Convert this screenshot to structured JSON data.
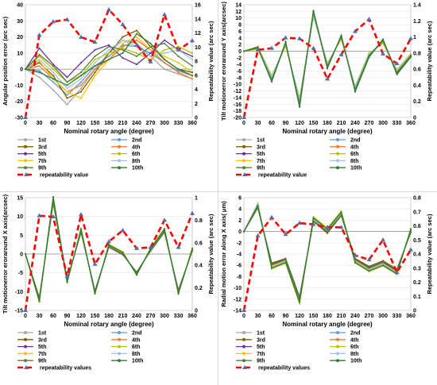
{
  "colors": {
    "runs": [
      "#a6a6a6",
      "#5b9bd5",
      "#7f6000",
      "#ed7d31",
      "#7030a0",
      "#bfbf00",
      "#ffc000",
      "#9dc3e6",
      "#548235",
      "#2e7d32"
    ],
    "repeatability": "#ff0000",
    "marker": "#4f6fb0"
  },
  "chart_data": [
    {
      "type": "line",
      "xlabel": "Nominal rotary angle (degree)",
      "ylabel": "Angular position error (arc sec)",
      "y2label": "Repeatability value (arc sec)",
      "x": [
        0,
        30,
        60,
        90,
        120,
        150,
        180,
        210,
        240,
        270,
        300,
        330,
        360
      ],
      "xticks": [
        0,
        30,
        60,
        90,
        120,
        150,
        180,
        210,
        240,
        270,
        300,
        330,
        360
      ],
      "ylim": [
        -30,
        40
      ],
      "yticks": [
        -30,
        -20,
        -10,
        0,
        10,
        20,
        30,
        40
      ],
      "y2lim": [
        0,
        16
      ],
      "y2ticks": [
        0,
        2,
        4,
        6,
        8,
        10,
        12,
        14,
        16
      ],
      "series": [
        {
          "name": "1st",
          "values": [
            0,
            -5,
            -13,
            -22,
            -12,
            0,
            10,
            18,
            16,
            8,
            0,
            -3,
            -6
          ]
        },
        {
          "name": "2nd",
          "values": [
            0,
            -1,
            -8,
            -16,
            -8,
            2,
            8,
            15,
            14,
            10,
            4,
            -1,
            -4
          ]
        },
        {
          "name": "3rd",
          "values": [
            0,
            4,
            -4,
            -18,
            -14,
            -2,
            10,
            20,
            24,
            14,
            6,
            0,
            -4
          ]
        },
        {
          "name": "4th",
          "values": [
            0,
            2,
            -6,
            -14,
            -10,
            0,
            6,
            14,
            18,
            12,
            4,
            -2,
            -6
          ]
        },
        {
          "name": "5th",
          "values": [
            0,
            13,
            3,
            -5,
            4,
            12,
            15,
            7,
            3,
            10,
            18,
            12,
            8
          ]
        },
        {
          "name": "6th",
          "values": [
            0,
            8,
            0,
            -8,
            -4,
            6,
            10,
            13,
            10,
            6,
            12,
            14,
            10
          ]
        },
        {
          "name": "7th",
          "values": [
            0,
            5,
            -6,
            -14,
            -18,
            -4,
            6,
            16,
            20,
            12,
            8,
            4,
            -2
          ]
        },
        {
          "name": "8th",
          "values": [
            0,
            6,
            -2,
            -12,
            -6,
            4,
            12,
            18,
            14,
            8,
            10,
            12,
            6
          ]
        },
        {
          "name": "9th",
          "values": [
            0,
            9,
            2,
            -8,
            -2,
            8,
            14,
            12,
            8,
            14,
            16,
            8,
            2
          ]
        },
        {
          "name": "10th",
          "values": [
            0,
            -2,
            -6,
            -10,
            -4,
            2,
            6,
            10,
            22,
            16,
            6,
            0,
            -2
          ]
        }
      ],
      "repeatability": {
        "name": "repeatability value",
        "values": [
          0,
          11.7,
          13.6,
          13.9,
          11.4,
          10.7,
          15.3,
          13.2,
          10.3,
          7.9,
          14.6,
          9.6,
          10.9
        ]
      }
    },
    {
      "type": "line",
      "xlabel": "Nominal rotary angle (degree)",
      "ylabel": "Tilt motionerror eroraround Y axis(arcsec)",
      "y2label": "Repeatability value (arc sec)",
      "x": [
        0,
        30,
        60,
        90,
        120,
        150,
        180,
        210,
        240,
        270,
        300,
        330,
        360
      ],
      "xticks": [
        0,
        30,
        60,
        90,
        120,
        150,
        180,
        210,
        240,
        270,
        300,
        330,
        360
      ],
      "ylim": [
        -20,
        14
      ],
      "yticks": [
        -20,
        -18,
        -16,
        -14,
        -12,
        -10,
        -8,
        -6,
        -4,
        -2,
        0,
        2,
        4,
        6,
        8,
        10,
        12,
        14
      ],
      "y2lim": [
        0,
        1.4
      ],
      "y2ticks": [
        0,
        0.2,
        0.4,
        0.6,
        0.8,
        1,
        1.2,
        1.4
      ],
      "series": [
        {
          "name": "1st",
          "values": [
            0,
            1,
            -8,
            2,
            -15,
            11,
            -4,
            4,
            -11,
            -1,
            3,
            -6,
            -1
          ]
        },
        {
          "name": "2nd",
          "values": [
            0,
            1.2,
            -8.5,
            2.2,
            -15.5,
            11.5,
            -4.3,
            4.2,
            -11.4,
            -1.2,
            2.8,
            -6.2,
            -1.2
          ]
        },
        {
          "name": "3rd",
          "values": [
            0,
            0.8,
            -8.8,
            2.4,
            -16,
            12,
            -4.6,
            4.4,
            -11.8,
            -1.4,
            3.2,
            -6.6,
            -1.4
          ]
        },
        {
          "name": "4th",
          "values": [
            0,
            1.3,
            -7.6,
            1.8,
            -14.6,
            10.6,
            -3.8,
            3.8,
            -10.8,
            -0.8,
            2.6,
            -5.8,
            -0.9
          ]
        },
        {
          "name": "5th",
          "values": [
            0,
            1,
            -9,
            2.6,
            -16.5,
            11.8,
            -5,
            4.6,
            -12,
            -1.6,
            3.4,
            -6.8,
            -1.6
          ]
        },
        {
          "name": "6th",
          "values": [
            0,
            1.4,
            -7.4,
            1.6,
            -14.2,
            10.4,
            -3.6,
            3.6,
            -10.6,
            -0.6,
            2.4,
            -5.6,
            -0.8
          ]
        },
        {
          "name": "7th",
          "values": [
            0,
            0.6,
            -8.2,
            2,
            -15.2,
            11.2,
            -4.2,
            4,
            -11.2,
            -1,
            3,
            -6,
            -1
          ]
        },
        {
          "name": "8th",
          "values": [
            0,
            1.1,
            -7.8,
            2.2,
            -14.8,
            10.8,
            -4,
            4.1,
            -10.9,
            -0.9,
            2.9,
            -5.9,
            -1.1
          ]
        },
        {
          "name": "9th",
          "values": [
            0,
            0.9,
            -8.6,
            2.3,
            -15.8,
            11.7,
            -4.5,
            4.3,
            -11.6,
            -1.3,
            3.1,
            -6.4,
            -1.3
          ]
        },
        {
          "name": "10th",
          "values": [
            0,
            1.2,
            -9.2,
            2.8,
            -16.8,
            12.2,
            -5.2,
            4.8,
            -12.2,
            -1.8,
            3.6,
            -7,
            -1.8
          ]
        }
      ],
      "repeatability": {
        "name": "repeatability value",
        "values": [
          0,
          0.84,
          0.86,
          0.99,
          0.98,
          0.86,
          0.48,
          0.78,
          1.07,
          1.22,
          0.79,
          0.67,
          0.98
        ]
      }
    },
    {
      "type": "line",
      "xlabel": "Nominal rotary angle (degree)",
      "ylabel": "Tilt motionerror eroraround X axis(arcsec)",
      "y2label": "Repeatability value (arc sec)",
      "x": [
        0,
        30,
        60,
        90,
        120,
        150,
        180,
        210,
        240,
        270,
        300,
        330,
        360
      ],
      "xticks": [
        0,
        30,
        60,
        90,
        120,
        150,
        180,
        210,
        240,
        270,
        300,
        330,
        360
      ],
      "ylim": [
        -15,
        15
      ],
      "yticks": [
        -15,
        -10,
        -5,
        0,
        5,
        10,
        15
      ],
      "y2lim": [
        0,
        1
      ],
      "y2ticks": [
        0,
        0.2,
        0.4,
        0.6,
        0.8,
        1
      ],
      "series": [
        {
          "name": "1st",
          "values": [
            0,
            -12,
            14,
            -7,
            6,
            -10,
            2,
            0,
            -5,
            1,
            6,
            -10,
            1
          ]
        },
        {
          "name": "2nd",
          "values": [
            0,
            -12.3,
            14.3,
            -7.2,
            6.2,
            -10.2,
            2.1,
            0.1,
            -5.2,
            1.1,
            6.2,
            -10.2,
            1.1
          ]
        },
        {
          "name": "3rd",
          "values": [
            0,
            -11.6,
            13.6,
            -6.8,
            5.8,
            -9.8,
            1.8,
            -0.2,
            -4.8,
            0.8,
            5.8,
            -9.6,
            0.8
          ]
        },
        {
          "name": "4th",
          "values": [
            0,
            -12.6,
            14.6,
            -7.4,
            6.4,
            -10.4,
            2.3,
            0.3,
            -5.4,
            1.3,
            6.4,
            -10.4,
            1.3
          ]
        },
        {
          "name": "5th",
          "values": [
            0,
            -11.8,
            13.8,
            -6.9,
            5.9,
            -9.9,
            1.9,
            -0.1,
            -4.9,
            0.9,
            5.9,
            -9.8,
            0.9
          ]
        },
        {
          "name": "6th",
          "values": [
            0,
            -12.8,
            15,
            -7.6,
            6.8,
            -10.6,
            2.6,
            0.6,
            -5.6,
            1.6,
            6.8,
            -10.6,
            1.6
          ]
        },
        {
          "name": "7th",
          "values": [
            0,
            -12.2,
            14.2,
            -7.1,
            6.1,
            -10.1,
            2,
            0,
            -5.1,
            1,
            6.1,
            -10.1,
            1
          ]
        },
        {
          "name": "8th",
          "values": [
            0,
            -12.4,
            14.4,
            -7.3,
            6.3,
            -10.3,
            2.2,
            0.2,
            -5.3,
            1.2,
            6.3,
            -10.3,
            1.2
          ]
        },
        {
          "name": "9th",
          "values": [
            0,
            -11.9,
            13.9,
            -7,
            6,
            -10,
            2,
            0,
            -5,
            1,
            6,
            -10,
            1
          ]
        },
        {
          "name": "10th",
          "values": [
            0,
            -12.5,
            15.2,
            -7.5,
            6.6,
            -10.5,
            2.4,
            0.4,
            -5.5,
            1.4,
            6.6,
            -10.5,
            1.4
          ]
        }
      ],
      "repeatability": {
        "name": "repeatability values",
        "values": [
          0,
          0.84,
          0.83,
          0.3,
          0.85,
          0.41,
          0.61,
          0.71,
          0.55,
          0.56,
          0.8,
          0.56,
          0.86
        ]
      }
    },
    {
      "type": "line",
      "xlabel": "Nominal rotary angle (degree)",
      "ylabel": "Radial motion error along X axis( μm)",
      "y2label": "Repeatability value (arc sec)",
      "x": [
        0,
        30,
        60,
        90,
        120,
        150,
        180,
        210,
        240,
        270,
        300,
        330,
        360
      ],
      "xticks": [
        0,
        30,
        60,
        90,
        120,
        150,
        180,
        210,
        240,
        270,
        300,
        330,
        360
      ],
      "ylim": [
        -14,
        6
      ],
      "yticks": [
        -14,
        -12,
        -10,
        -8,
        -6,
        -4,
        -2,
        0,
        2,
        4,
        6
      ],
      "y2lim": [
        0,
        0.8
      ],
      "y2ticks": [
        0,
        0.1,
        0.2,
        0.3,
        0.4,
        0.5,
        0.6,
        0.7,
        0.8
      ],
      "series": [
        {
          "name": "1st",
          "values": [
            0,
            4.5,
            -6,
            -5,
            -12,
            2,
            0,
            3,
            -5,
            -6.5,
            -5.5,
            -7,
            0
          ]
        },
        {
          "name": "2nd",
          "values": [
            0,
            4.6,
            -6.2,
            -5.2,
            -12.2,
            2.1,
            0.1,
            3.1,
            -5.2,
            -6.7,
            -5.7,
            -7.2,
            0.1
          ]
        },
        {
          "name": "3rd",
          "values": [
            0,
            4.2,
            -5.6,
            -4.8,
            -11.6,
            1.8,
            -0.3,
            2.8,
            -4.8,
            -6.2,
            -5.2,
            -6.7,
            -0.2
          ]
        },
        {
          "name": "4th",
          "values": [
            0,
            4.8,
            -6.4,
            -5.4,
            -12.4,
            2.3,
            0.3,
            3.3,
            -5.4,
            -6.9,
            -5.9,
            -7.4,
            0.3
          ]
        },
        {
          "name": "5th",
          "values": [
            0,
            4.4,
            -5.8,
            -4.9,
            -11.8,
            1.9,
            -0.1,
            2.9,
            -4.9,
            -6.4,
            -5.4,
            -6.9,
            -0.1
          ]
        },
        {
          "name": "6th",
          "values": [
            0,
            5,
            -6.6,
            -5.6,
            -12.8,
            2.6,
            0.6,
            3.6,
            -5.6,
            -7.1,
            -6.1,
            -7.6,
            0.5
          ]
        },
        {
          "name": "7th",
          "values": [
            0,
            4.7,
            -6.1,
            -5.1,
            -12.1,
            2,
            0,
            3,
            -5.1,
            -6.6,
            -5.6,
            -7.1,
            0
          ]
        },
        {
          "name": "8th",
          "values": [
            0,
            4.9,
            -6.3,
            -5.3,
            -12.3,
            2.2,
            0.2,
            3.2,
            -5.3,
            -6.8,
            -5.8,
            -7.3,
            0.2
          ]
        },
        {
          "name": "9th",
          "values": [
            0,
            4.3,
            -5.9,
            -5,
            -11.9,
            1.9,
            0,
            2.9,
            -5,
            -6.5,
            -5.5,
            -7,
            0
          ]
        },
        {
          "name": "10th",
          "values": [
            0,
            4.6,
            -6.5,
            -5.5,
            -12.5,
            2.4,
            0.4,
            3.4,
            -5.5,
            -7,
            -6,
            -7.5,
            0.4
          ]
        }
      ],
      "repeatability": {
        "name": "repeatability values",
        "values": [
          0,
          0.53,
          0.66,
          0.54,
          0.62,
          0.61,
          0.59,
          0.59,
          0.39,
          0.36,
          0.5,
          0.27,
          0.43
        ]
      }
    }
  ]
}
